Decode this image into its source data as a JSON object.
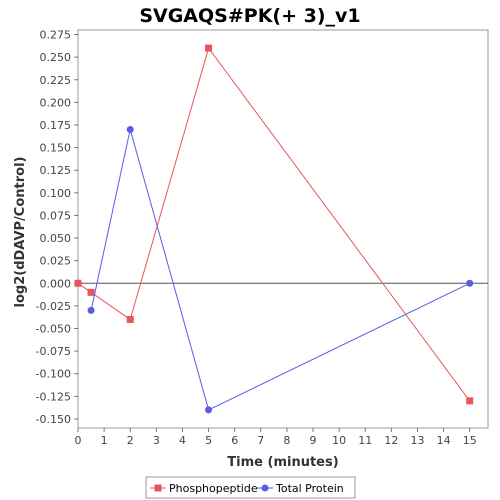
{
  "chart_data": {
    "type": "line",
    "title": "SVGAQS#PK(+ 3)_v1",
    "xlabel": "Time (minutes)",
    "ylabel": "log2(dDAVP/Control)",
    "xlim": [
      0,
      15.7
    ],
    "ylim": [
      -0.16,
      0.28
    ],
    "x_ticks": [
      0,
      1,
      2,
      3,
      4,
      5,
      6,
      7,
      8,
      9,
      10,
      11,
      12,
      13,
      14,
      15
    ],
    "x_tick_labels": [
      "0",
      "1",
      "2",
      "3",
      "4",
      "5",
      "6",
      "7",
      "8",
      "9",
      "10",
      "11",
      "12",
      "13",
      "14",
      "15"
    ],
    "y_ticks": [
      -0.15,
      -0.125,
      -0.1,
      -0.075,
      -0.05,
      -0.025,
      0.0,
      0.025,
      0.05,
      0.075,
      0.1,
      0.125,
      0.15,
      0.175,
      0.2,
      0.225,
      0.25,
      0.275
    ],
    "y_tick_labels": [
      "-0.150",
      "-0.125",
      "-0.100",
      "-0.075",
      "-0.050",
      "-0.025",
      "0.000",
      "0.025",
      "0.050",
      "0.075",
      "0.100",
      "0.125",
      "0.150",
      "0.175",
      "0.200",
      "0.225",
      "0.250",
      "0.275"
    ],
    "zero_line": 0,
    "grid": false,
    "legend_position": "bottom",
    "series": [
      {
        "name": "Phosphopeptide",
        "color": "#e8555a",
        "marker": "square",
        "x": [
          0,
          0.5,
          2,
          5,
          15
        ],
        "y": [
          0.0,
          -0.01,
          -0.04,
          0.26,
          -0.13
        ]
      },
      {
        "name": "Total Protein",
        "color": "#5a5ae8",
        "marker": "circle",
        "x": [
          0.5,
          2,
          5,
          15
        ],
        "y": [
          -0.03,
          0.17,
          -0.14,
          0.0
        ]
      }
    ]
  }
}
